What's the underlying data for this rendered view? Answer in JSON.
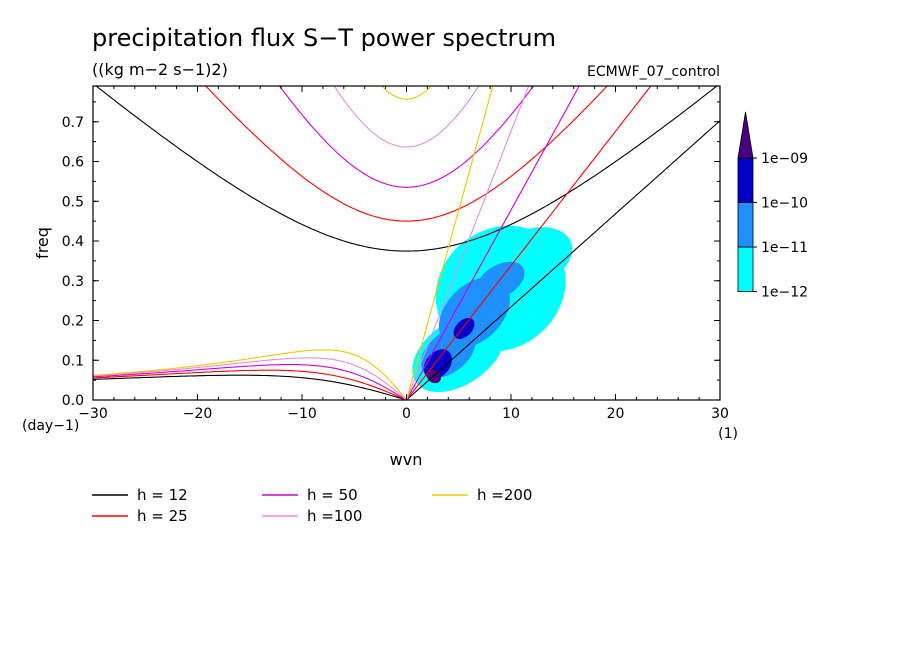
{
  "chart_data": {
    "type": "contour",
    "title": "precipitation flux S−T power spectrum",
    "units": "((kg m−2 s−1)2)",
    "run_label": "ECMWF_07_control",
    "xlabel": "wvn",
    "ylabel": "freq",
    "x_unit": "(1)",
    "y_unit": "(day−1)",
    "xlim": [
      -30,
      30
    ],
    "ylim": [
      0,
      0.79
    ],
    "x_ticks": [
      -30,
      -20,
      -10,
      0,
      10,
      20,
      30
    ],
    "x_tick_labels": [
      "−30",
      "−20",
      "−10",
      "0",
      "10",
      "20",
      "30"
    ],
    "y_ticks": [
      0.0,
      0.1,
      0.2,
      0.3,
      0.4,
      0.5,
      0.6,
      0.7
    ],
    "y_tick_labels": [
      "0.0",
      "0.1",
      "0.2",
      "0.3",
      "0.4",
      "0.5",
      "0.6",
      "0.7"
    ],
    "colorbar": {
      "labels": [
        "1e−12",
        "1e−11",
        "1e−10",
        "1e−09"
      ],
      "colors": [
        "#00ffff",
        "#1e90ff",
        "#0000c8",
        "#4b0082"
      ]
    },
    "dispersion_curves": [
      {
        "name": "h = 12",
        "h": 12,
        "color": "#000000"
      },
      {
        "name": "h = 25",
        "h": 25,
        "color": "#ff0000"
      },
      {
        "name": "h = 50",
        "h": 50,
        "color": "#d400d4"
      },
      {
        "name": "h =100",
        "h": 100,
        "color": "#e08ee0"
      },
      {
        "name": "h =200",
        "h": 200,
        "color": "#f0c800"
      }
    ],
    "spectrum_blobs": [
      {
        "level": 0,
        "center": [
          9.0,
          0.28
        ],
        "rx": 6.5,
        "ry": 0.15,
        "rot": -38
      },
      {
        "level": 0,
        "center": [
          5.0,
          0.12
        ],
        "rx": 5.0,
        "ry": 0.08,
        "rot": -35
      },
      {
        "level": 0,
        "center": [
          12.0,
          0.36
        ],
        "rx": 4.0,
        "ry": 0.07,
        "rot": -20
      },
      {
        "level": 1,
        "center": [
          6.5,
          0.22
        ],
        "rx": 4.0,
        "ry": 0.07,
        "rot": -45
      },
      {
        "level": 1,
        "center": [
          4.0,
          0.12
        ],
        "rx": 3.0,
        "ry": 0.05,
        "rot": -40
      },
      {
        "level": 1,
        "center": [
          9.0,
          0.3
        ],
        "rx": 2.5,
        "ry": 0.04,
        "rot": -30
      },
      {
        "level": 2,
        "center": [
          3.0,
          0.09
        ],
        "rx": 1.6,
        "ry": 0.03,
        "rot": -50
      },
      {
        "level": 2,
        "center": [
          5.5,
          0.18
        ],
        "rx": 1.2,
        "ry": 0.02,
        "rot": -45
      },
      {
        "level": 3,
        "center": [
          2.6,
          0.06
        ],
        "rx": 0.6,
        "ry": 0.02,
        "rot": -50
      }
    ]
  }
}
